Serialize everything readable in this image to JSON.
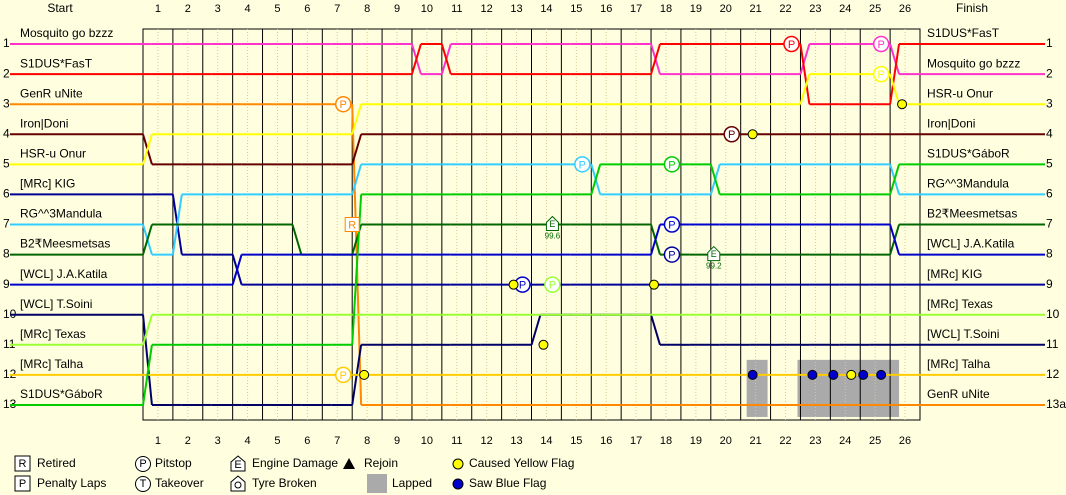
{
  "chart_data": {
    "type": "line",
    "start_title": "Start",
    "finish_title": "Finish",
    "xlim": [
      0.5,
      26.5
    ],
    "xticks": [
      1,
      2,
      3,
      4,
      5,
      6,
      7,
      8,
      9,
      10,
      11,
      12,
      13,
      14,
      15,
      16,
      17,
      18,
      19,
      20,
      21,
      22,
      23,
      24,
      25,
      26
    ],
    "x": [
      0,
      1,
      2,
      3,
      4,
      5,
      6,
      7,
      8,
      9,
      10,
      11,
      12,
      13,
      14,
      15,
      16,
      17,
      18,
      19,
      20,
      21,
      22,
      23,
      24,
      25,
      26
    ],
    "ylim": [
      0.5,
      13.5
    ],
    "yticks": [
      1,
      2,
      3,
      4,
      5,
      6,
      7,
      8,
      9,
      10,
      11,
      12,
      13
    ],
    "y2lim": [
      0.5,
      13.5
    ],
    "y2ticks": [
      1,
      2,
      3,
      4,
      5,
      6,
      7,
      8,
      9,
      10,
      11,
      12,
      {
        "value": 13,
        "label": "13a"
      }
    ],
    "series": [
      {
        "name": "Mosquito go bzzz",
        "color": "#ff33cc",
        "values": [
          1,
          1,
          1,
          1,
          1,
          1,
          1,
          1,
          1,
          1,
          2,
          1,
          1,
          1,
          1,
          1,
          1,
          1,
          2,
          2,
          2,
          2,
          2,
          1,
          1,
          1,
          2
        ]
      },
      {
        "name": "S1DUS*FasT",
        "color": "#ff0000",
        "values": [
          2,
          2,
          2,
          2,
          2,
          2,
          2,
          2,
          2,
          2,
          1,
          2,
          2,
          2,
          2,
          2,
          2,
          2,
          1,
          1,
          1,
          1,
          1,
          3,
          3,
          3,
          1
        ]
      },
      {
        "name": "GenR uNite",
        "color": "#ff8800",
        "values": [
          3,
          3,
          3,
          3,
          3,
          3,
          3,
          3,
          13,
          13,
          13,
          13,
          13,
          13,
          13,
          13,
          13,
          13,
          13,
          13,
          13,
          13,
          13,
          13,
          13,
          13,
          13
        ]
      },
      {
        "name": "Iron|Doni",
        "color": "#660000",
        "values": [
          4,
          5,
          5,
          5,
          5,
          5,
          5,
          5,
          4,
          4,
          4,
          4,
          4,
          4,
          4,
          4,
          4,
          4,
          4,
          4,
          4,
          4,
          4,
          4,
          4,
          4,
          4
        ]
      },
      {
        "name": "HSR-u Onur",
        "color": "#ffff00",
        "values": [
          5,
          4,
          4,
          4,
          4,
          4,
          4,
          4,
          3,
          3,
          3,
          3,
          3,
          3,
          3,
          3,
          3,
          3,
          3,
          3,
          3,
          3,
          3,
          2,
          2,
          2,
          3
        ]
      },
      {
        "name": "[MRc] KIG",
        "color": "#000099",
        "values": [
          6,
          6,
          8,
          8,
          9,
          9,
          9,
          9,
          9,
          9,
          9,
          9,
          9,
          9,
          9,
          9,
          9,
          9,
          9,
          9,
          9,
          9,
          9,
          9,
          9,
          9,
          9
        ]
      },
      {
        "name": "RG^^3Mandula",
        "color": "#33ccff",
        "values": [
          7,
          8,
          6,
          6,
          6,
          6,
          6,
          6,
          5,
          5,
          5,
          5,
          5,
          5,
          5,
          5,
          6,
          6,
          6,
          6,
          5,
          5,
          5,
          5,
          5,
          5,
          6
        ]
      },
      {
        "name": "B2₹Meesmetsas",
        "color": "#006600",
        "values": [
          8,
          7,
          7,
          7,
          7,
          7,
          8,
          8,
          7,
          7,
          7,
          7,
          7,
          7,
          7,
          7,
          7,
          7,
          8,
          8,
          8,
          8,
          8,
          8,
          8,
          8,
          7
        ]
      },
      {
        "name": "[WCL] J.A.Katila",
        "color": "#0000cc",
        "values": [
          9,
          9,
          9,
          9,
          8,
          8,
          8,
          8,
          8,
          8,
          8,
          8,
          8,
          8,
          8,
          8,
          8,
          8,
          7,
          7,
          7,
          7,
          7,
          7,
          7,
          7,
          8
        ]
      },
      {
        "name": "[WCL] T.Soini",
        "color": "#000066",
        "values": [
          10,
          13,
          13,
          13,
          13,
          13,
          13,
          13,
          11,
          11,
          11,
          11,
          11,
          11,
          10,
          10,
          10,
          10,
          11,
          11,
          11,
          11,
          11,
          11,
          11,
          11,
          11
        ]
      },
      {
        "name": "[MRc] Texas",
        "color": "#99ff33",
        "values": [
          11,
          10,
          10,
          10,
          10,
          10,
          10,
          10,
          10,
          10,
          10,
          10,
          10,
          10,
          10,
          10,
          10,
          10,
          10,
          10,
          10,
          10,
          10,
          10,
          10,
          10,
          10
        ]
      },
      {
        "name": "[MRc] Talha",
        "color": "#ffcc00",
        "values": [
          12,
          12,
          12,
          12,
          12,
          12,
          12,
          12,
          12,
          12,
          12,
          12,
          12,
          12,
          12,
          12,
          12,
          12,
          12,
          12,
          12,
          12,
          12,
          12,
          12,
          12,
          12
        ]
      },
      {
        "name": "S1DUS*GáboR",
        "color": "#00cc00",
        "values": [
          13,
          11,
          11,
          11,
          11,
          11,
          11,
          11,
          6,
          6,
          6,
          6,
          6,
          6,
          6,
          6,
          5,
          5,
          5,
          5,
          6,
          6,
          6,
          6,
          6,
          6,
          5
        ]
      }
    ],
    "pitstops": [
      {
        "x": 7.2,
        "y": 3,
        "color": "#ff8800"
      },
      {
        "x": 15.2,
        "y": 5,
        "color": "#33ccff"
      },
      {
        "x": 18.2,
        "y": 5,
        "color": "#00cc00"
      },
      {
        "x": 18.2,
        "y": 7,
        "color": "#0000cc"
      },
      {
        "x": 18.2,
        "y": 8,
        "color": "#000099"
      },
      {
        "x": 13.2,
        "y": 9,
        "color": "#0000cc"
      },
      {
        "x": 14.2,
        "y": 9,
        "color": "#99ff33"
      },
      {
        "x": 7.2,
        "y": 12,
        "color": "#ffcc00"
      },
      {
        "x": 22.2,
        "y": 1,
        "color": "#ff0000"
      },
      {
        "x": 25.2,
        "y": 1,
        "color": "#ff33cc"
      },
      {
        "x": 25.2,
        "y": 2,
        "color": "#ffff00"
      },
      {
        "x": 20.2,
        "y": 4,
        "color": "#660000"
      }
    ],
    "yellow_flags": [
      {
        "x": 20.9,
        "y": 4
      },
      {
        "x": 25.9,
        "y": 3
      },
      {
        "x": 12.9,
        "y": 9
      },
      {
        "x": 17.6,
        "y": 9
      },
      {
        "x": 13.9,
        "y": 11
      },
      {
        "x": 7.9,
        "y": 12
      },
      {
        "x": 24.2,
        "y": 12
      }
    ],
    "blue_flags": [
      {
        "x": 20.9,
        "y": 12
      },
      {
        "x": 22.9,
        "y": 12
      },
      {
        "x": 23.6,
        "y": 12
      },
      {
        "x": 24.6,
        "y": 12
      },
      {
        "x": 25.2,
        "y": 12
      }
    ],
    "lapped": [
      {
        "x": [
          20.7,
          21.4
        ],
        "y": [
          11.5,
          13
        ]
      },
      {
        "x": [
          22.4,
          25.8
        ],
        "y": [
          11.5,
          13
        ]
      }
    ],
    "retired": [
      {
        "x": 7.5,
        "y": 7,
        "color": "#ff8800"
      }
    ],
    "engine_damage": [
      {
        "x": 14.2,
        "y": 7,
        "label": "99.6"
      },
      {
        "x": 19.6,
        "y": 8,
        "label": "99.2"
      }
    ]
  },
  "legend": [
    {
      "symbol": "R",
      "label": "Retired"
    },
    {
      "symbol": "P",
      "label": "Pitstop"
    },
    {
      "symbol": "E",
      "label": "Engine Damage"
    },
    {
      "label": "Rejoin"
    },
    {
      "label": "Caused Yellow Flag"
    },
    {
      "symbol": "P",
      "label": "Penalty Laps"
    },
    {
      "symbol": "T",
      "label": "Takeover"
    },
    {
      "label": "Tyre Broken"
    },
    {
      "label": "Lapped"
    },
    {
      "label": "Saw Blue Flag"
    }
  ]
}
